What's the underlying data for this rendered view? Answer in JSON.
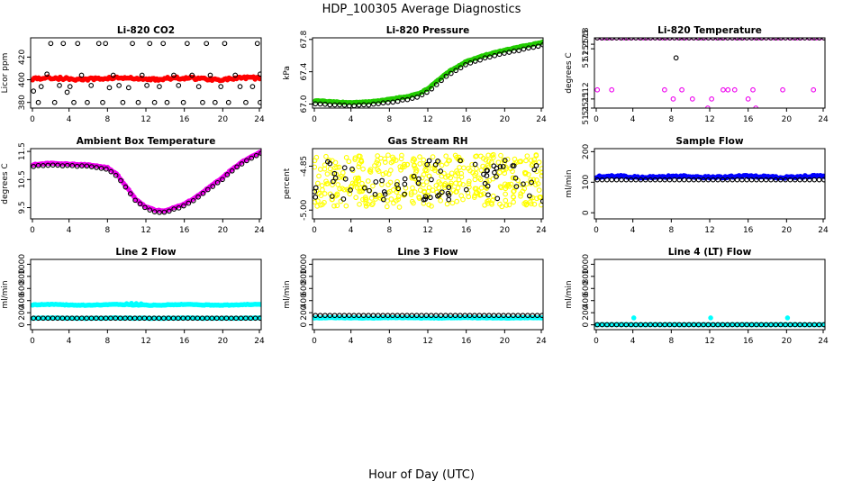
{
  "page": {
    "title": "HDP_100305  Average Diagnostics",
    "xlabel": "Hour of Day (UTC)"
  },
  "colors": {
    "red": "#ff0000",
    "green": "#22cc00",
    "magenta": "#ee00ee",
    "yellow": "#ffff00",
    "blue": "#0000ff",
    "cyan": "#00ffff",
    "black": "#000000"
  },
  "chart_data": [
    {
      "id": "co2",
      "type": "scatter",
      "title": "Li-820 CO2",
      "ylabel": "Licor ppm",
      "xlim": [
        0,
        24
      ],
      "ylim": [
        375,
        437
      ],
      "xticks": [
        "0",
        "4",
        "8",
        "12",
        "16",
        "20",
        "24"
      ],
      "yticks": [
        {
          "v": 380,
          "label": "380"
        },
        {
          "v": 400,
          "label": "400"
        },
        {
          "v": 420,
          "label": "420"
        }
      ],
      "series": [
        {
          "name": "dense",
          "color": "red",
          "style": "dense",
          "base": 401,
          "amp": 0.6,
          "spread": 1.2,
          "points": [
            [
              8.6,
              401.5
            ],
            [
              9.8,
              402
            ],
            [
              11.2,
              401
            ]
          ]
        },
        {
          "name": "black",
          "color": "black",
          "style": "open",
          "points": [
            [
              0.3,
              390
            ],
            [
              0.8,
              380
            ],
            [
              1.1,
              394
            ],
            [
              1.7,
              405
            ],
            [
              2.1,
              432
            ],
            [
              2.5,
              380
            ],
            [
              3.0,
              395
            ],
            [
              3.4,
              432
            ],
            [
              3.8,
              389
            ],
            [
              4.1,
              394
            ],
            [
              4.5,
              380
            ],
            [
              4.9,
              432
            ],
            [
              5.3,
              404
            ],
            [
              5.9,
              380
            ],
            [
              6.3,
              395
            ],
            [
              7.1,
              432
            ],
            [
              7.5,
              380
            ],
            [
              7.8,
              432
            ],
            [
              8.2,
              393
            ],
            [
              8.6,
              404
            ],
            [
              9.2,
              395
            ],
            [
              9.6,
              380
            ],
            [
              10.2,
              393
            ],
            [
              10.6,
              432
            ],
            [
              11.2,
              380
            ],
            [
              11.6,
              404
            ],
            [
              12.1,
              395
            ],
            [
              12.4,
              432
            ],
            [
              12.9,
              380
            ],
            [
              13.4,
              394
            ],
            [
              13.8,
              432
            ],
            [
              14.2,
              380
            ],
            [
              14.9,
              404
            ],
            [
              15.4,
              395
            ],
            [
              15.9,
              380
            ],
            [
              16.3,
              432
            ],
            [
              16.8,
              404
            ],
            [
              17.5,
              394
            ],
            [
              17.9,
              380
            ],
            [
              18.3,
              432
            ],
            [
              18.7,
              404
            ],
            [
              19.2,
              380
            ],
            [
              19.8,
              394
            ],
            [
              20.2,
              432
            ],
            [
              20.6,
              380
            ],
            [
              21.3,
              404
            ],
            [
              21.8,
              394
            ],
            [
              22.4,
              380
            ],
            [
              23.1,
              394
            ],
            [
              23.6,
              432
            ],
            [
              23.9,
              405
            ],
            [
              23.9,
              380
            ]
          ]
        }
      ]
    },
    {
      "id": "pressure",
      "type": "scatter",
      "title": "Li-820 Pressure",
      "ylabel": "kPa",
      "xlim": [
        0,
        24
      ],
      "ylim": [
        66.95,
        67.82
      ],
      "xticks": [
        "0",
        "4",
        "8",
        "12",
        "16",
        "20",
        "24"
      ],
      "yticks": [
        {
          "v": 67.0,
          "label": "67.0"
        },
        {
          "v": 67.4,
          "label": "67.4"
        },
        {
          "v": 67.8,
          "label": "67.8"
        }
      ],
      "series": [
        {
          "name": "green",
          "color": "green",
          "style": "curve",
          "n": 150,
          "offset": 0.008,
          "curve": [
            [
              0,
              67.04
            ],
            [
              2,
              67.02
            ],
            [
              4,
              67.01
            ],
            [
              6,
              67.02
            ],
            [
              8,
              67.05
            ],
            [
              10,
              67.09
            ],
            [
              11,
              67.12
            ],
            [
              12,
              67.18
            ],
            [
              13,
              67.28
            ],
            [
              14,
              67.38
            ],
            [
              15,
              67.45
            ],
            [
              16,
              67.52
            ],
            [
              18,
              67.6
            ],
            [
              20,
              67.66
            ],
            [
              22,
              67.71
            ],
            [
              24,
              67.76
            ]
          ]
        },
        {
          "name": "black",
          "color": "black",
          "style": "curve",
          "n": 48,
          "offset": -0.03,
          "curve": [
            [
              0,
              67.04
            ],
            [
              2,
              67.02
            ],
            [
              4,
              67.01
            ],
            [
              6,
              67.02
            ],
            [
              8,
              67.05
            ],
            [
              10,
              67.09
            ],
            [
              11,
              67.12
            ],
            [
              12,
              67.18
            ],
            [
              13,
              67.28
            ],
            [
              14,
              67.38
            ],
            [
              15,
              67.45
            ],
            [
              16,
              67.52
            ],
            [
              18,
              67.6
            ],
            [
              20,
              67.66
            ],
            [
              22,
              67.71
            ],
            [
              24,
              67.76
            ]
          ]
        }
      ]
    },
    {
      "id": "licortemp",
      "type": "scatter",
      "title": "Li-820 Temperature",
      "ylabel": "degrees C",
      "xlim": [
        0,
        24
      ],
      "ylim": [
        51.2511,
        51.25187
      ],
      "xticks": [
        "0",
        "4",
        "8",
        "12",
        "16",
        "20",
        "24"
      ],
      "yticks": [
        {
          "v": 51.2511,
          "label": "51.2511"
        },
        {
          "v": 51.2512,
          "label": "51.2512"
        },
        {
          "v": 51.25175,
          "label": "51.25175"
        },
        {
          "v": 51.2518,
          "label": "51.2518"
        }
      ],
      "series": [
        {
          "name": "magenta-top",
          "color": "magenta",
          "style": "row",
          "y": 51.25187,
          "n": 60
        },
        {
          "name": "black-top",
          "color": "black",
          "style": "row",
          "y": 51.25187,
          "n": 48
        },
        {
          "name": "magenta-low",
          "color": "magenta",
          "style": "open",
          "points": [
            [
              0.3,
              51.2513
            ],
            [
              1.8,
              51.2513
            ],
            [
              7.3,
              51.2513
            ],
            [
              8.2,
              51.2512
            ],
            [
              9.1,
              51.2513
            ],
            [
              10.2,
              51.2512
            ],
            [
              11.8,
              51.2511
            ],
            [
              12.2,
              51.2512
            ],
            [
              13.4,
              51.2513
            ],
            [
              13.9,
              51.2513
            ],
            [
              14.6,
              51.2513
            ],
            [
              16.0,
              51.2512
            ],
            [
              16.5,
              51.2513
            ],
            [
              16.8,
              51.2511
            ],
            [
              19.6,
              51.2513
            ],
            [
              22.8,
              51.2513
            ]
          ]
        },
        {
          "name": "black-odd",
          "color": "black",
          "style": "open",
          "points": [
            [
              8.5,
              51.25165
            ]
          ]
        }
      ]
    },
    {
      "id": "boxtemp",
      "type": "scatter",
      "title": "Ambient Box Temperature",
      "ylabel": "degrees C",
      "xlim": [
        0,
        24
      ],
      "ylim": [
        9.1,
        11.6
      ],
      "xticks": [
        "0",
        "4",
        "8",
        "12",
        "16",
        "20",
        "24"
      ],
      "yticks": [
        {
          "v": 9.5,
          "label": "9.5"
        },
        {
          "v": 10.5,
          "label": "10.5"
        },
        {
          "v": 11.5,
          "label": "11.5"
        }
      ],
      "series": [
        {
          "name": "magenta",
          "color": "magenta",
          "style": "curve",
          "n": 130,
          "offset": 0.03,
          "curve": [
            [
              0,
              11.0
            ],
            [
              2,
              11.05
            ],
            [
              4,
              11.02
            ],
            [
              6,
              11.0
            ],
            [
              8,
              10.9
            ],
            [
              9,
              10.65
            ],
            [
              10,
              10.2
            ],
            [
              11,
              9.75
            ],
            [
              12,
              9.5
            ],
            [
              13,
              9.38
            ],
            [
              14,
              9.36
            ],
            [
              15,
              9.48
            ],
            [
              16,
              9.6
            ],
            [
              17,
              9.8
            ],
            [
              18,
              10.05
            ],
            [
              19,
              10.3
            ],
            [
              20,
              10.55
            ],
            [
              21,
              10.85
            ],
            [
              22,
              11.1
            ],
            [
              23,
              11.3
            ],
            [
              24,
              11.45
            ]
          ]
        },
        {
          "name": "black",
          "color": "black",
          "style": "curve",
          "n": 48,
          "offset": -0.03,
          "curve": [
            [
              0,
              11.0
            ],
            [
              2,
              11.05
            ],
            [
              4,
              11.02
            ],
            [
              6,
              11.0
            ],
            [
              8,
              10.9
            ],
            [
              9,
              10.65
            ],
            [
              10,
              10.2
            ],
            [
              11,
              9.75
            ],
            [
              12,
              9.5
            ],
            [
              13,
              9.38
            ],
            [
              14,
              9.36
            ],
            [
              15,
              9.48
            ],
            [
              16,
              9.6
            ],
            [
              17,
              9.8
            ],
            [
              18,
              10.05
            ],
            [
              19,
              10.3
            ],
            [
              20,
              10.55
            ],
            [
              21,
              10.85
            ],
            [
              22,
              11.1
            ],
            [
              23,
              11.3
            ],
            [
              24,
              11.45
            ]
          ]
        }
      ]
    },
    {
      "id": "rh",
      "type": "scatter",
      "title": "Gas Stream RH",
      "ylabel": "percent",
      "xlim": [
        0,
        24
      ],
      "ylim": [
        -5.03,
        -4.79
      ],
      "xticks": [
        "0",
        "4",
        "8",
        "12",
        "16",
        "20",
        "24"
      ],
      "yticks": [
        {
          "v": -5.0,
          "label": "-5.00"
        },
        {
          "v": -4.85,
          "label": "-4.85"
        }
      ],
      "series": [
        {
          "name": "yellow",
          "color": "yellow",
          "style": "noisy",
          "n": 420,
          "base": -4.9,
          "spread": 0.09,
          "seed": 7
        },
        {
          "name": "black",
          "color": "black",
          "style": "noisy",
          "n": 75,
          "base": -4.9,
          "spread": 0.07,
          "seed": 3
        }
      ]
    },
    {
      "id": "sampleflow",
      "type": "scatter",
      "title": "Sample Flow",
      "ylabel": "ml/min",
      "xlim": [
        0,
        24
      ],
      "ylim": [
        -20,
        210
      ],
      "xticks": [
        "0",
        "4",
        "8",
        "12",
        "16",
        "20",
        "24"
      ],
      "yticks": [
        {
          "v": 0,
          "label": "0"
        },
        {
          "v": 100,
          "label": "100"
        },
        {
          "v": 200,
          "label": "200"
        }
      ],
      "series": [
        {
          "name": "blue",
          "color": "blue",
          "style": "dense",
          "base": 118,
          "amp": 2,
          "spread": 3
        },
        {
          "name": "black",
          "color": "black",
          "style": "row",
          "y": 108,
          "n": 48
        }
      ]
    },
    {
      "id": "line2",
      "type": "scatter",
      "title": "Line 2 Flow",
      "ylabel": "ml/min",
      "xlim": [
        0,
        24
      ],
      "ylim": [
        -80,
        1080
      ],
      "xticks": [
        "0",
        "4",
        "8",
        "12",
        "16",
        "20",
        "24"
      ],
      "yticks": [
        {
          "v": 0,
          "label": "0"
        },
        {
          "v": 200,
          "label": "200"
        },
        {
          "v": 400,
          "label": "400"
        },
        {
          "v": 600,
          "label": "600"
        },
        {
          "v": 800,
          "label": "800"
        },
        {
          "v": 1000,
          "label": "1000"
        }
      ],
      "series": [
        {
          "name": "cyan-high",
          "color": "cyan",
          "style": "dense",
          "base": 330,
          "amp": 6,
          "spread": 5,
          "points": [
            [
              10,
              350
            ],
            [
              10.5,
              355
            ],
            [
              11,
              352
            ],
            [
              11.5,
              348
            ]
          ]
        },
        {
          "name": "cyan-low",
          "color": "cyan",
          "style": "dense",
          "base": 110,
          "amp": 2,
          "spread": 4
        },
        {
          "name": "black",
          "color": "black",
          "style": "row",
          "y": 110,
          "n": 48
        }
      ]
    },
    {
      "id": "line3",
      "type": "scatter",
      "title": "Line 3 Flow",
      "ylabel": "ml/min",
      "xlim": [
        0,
        24
      ],
      "ylim": [
        -80,
        1080
      ],
      "xticks": [
        "0",
        "4",
        "8",
        "12",
        "16",
        "20",
        "24"
      ],
      "yticks": [
        {
          "v": 0,
          "label": "0"
        },
        {
          "v": 200,
          "label": "200"
        },
        {
          "v": 400,
          "label": "400"
        },
        {
          "v": 600,
          "label": "600"
        },
        {
          "v": 800,
          "label": "800"
        },
        {
          "v": 1000,
          "label": "1000"
        }
      ],
      "series": [
        {
          "name": "cyan",
          "color": "cyan",
          "style": "dense",
          "base": 115,
          "amp": 2,
          "spread": 4
        },
        {
          "name": "black",
          "color": "black",
          "style": "row",
          "y": 155,
          "n": 48
        }
      ]
    },
    {
      "id": "line4",
      "type": "scatter",
      "title": "Line 4 (LT) Flow",
      "ylabel": "ml/min",
      "xlim": [
        0,
        24
      ],
      "ylim": [
        -80,
        1080
      ],
      "xticks": [
        "0",
        "4",
        "8",
        "12",
        "16",
        "20",
        "24"
      ],
      "yticks": [
        {
          "v": 0,
          "label": "0"
        },
        {
          "v": 200,
          "label": "200"
        },
        {
          "v": 400,
          "label": "400"
        },
        {
          "v": 600,
          "label": "600"
        },
        {
          "v": 800,
          "label": "800"
        },
        {
          "v": 1000,
          "label": "1000"
        }
      ],
      "series": [
        {
          "name": "cyan",
          "color": "cyan",
          "style": "dense",
          "base": 2,
          "amp": 0,
          "spread": 2,
          "points": [
            [
              4.1,
              115
            ],
            [
              12.1,
              115
            ],
            [
              20.1,
              115
            ]
          ]
        },
        {
          "name": "black",
          "color": "black",
          "style": "row",
          "y": 2,
          "n": 48
        }
      ]
    }
  ]
}
